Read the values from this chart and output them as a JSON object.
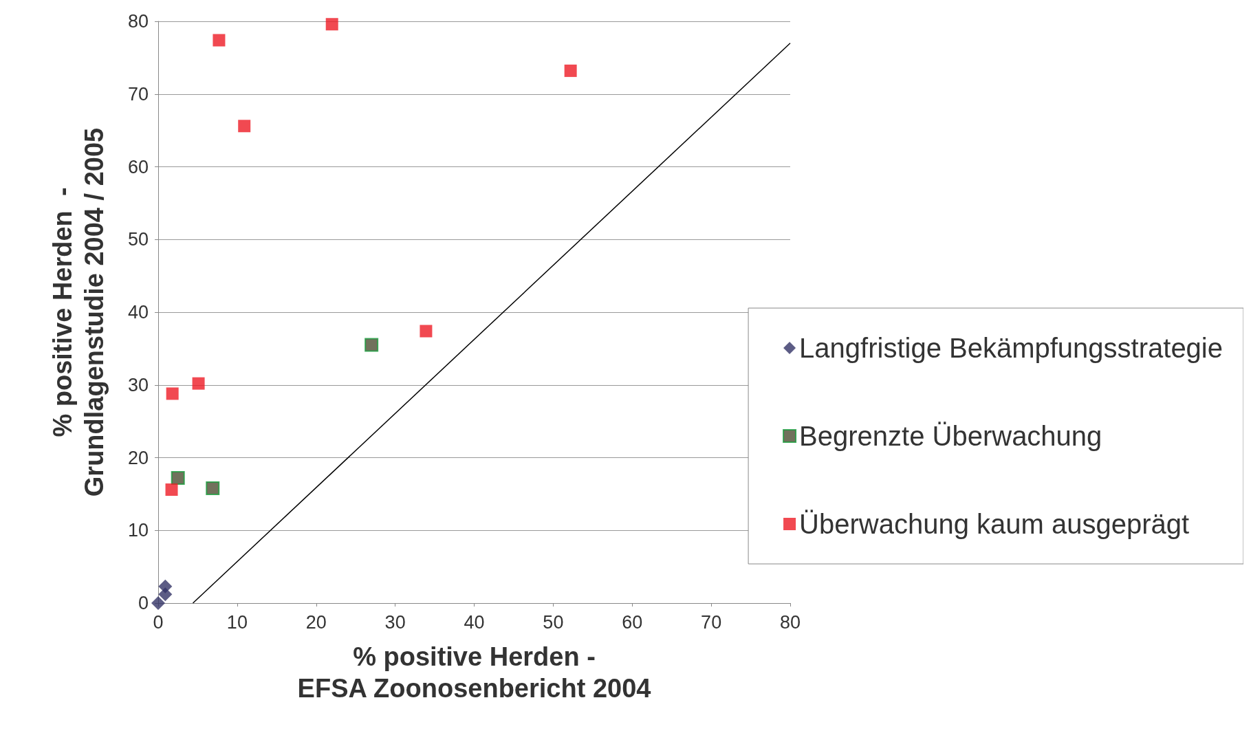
{
  "chart_data": {
    "type": "scatter",
    "xlabel": "% positive Herden -\nEFSA Zoonosenbericht 2004",
    "ylabel": "% positive Herden  -\nGrundlagenstudie 2004 / 2005",
    "xlim": [
      0,
      80
    ],
    "ylim": [
      0,
      80
    ],
    "xticks": [
      0,
      10,
      20,
      30,
      40,
      50,
      60,
      70,
      80
    ],
    "yticks": [
      0,
      10,
      20,
      30,
      40,
      50,
      60,
      70,
      80
    ],
    "grid": "y",
    "legend": "right",
    "series": [
      {
        "name": "Langfristige Bekämpfungsstrategie",
        "color": "#333366",
        "marker": "diamond",
        "x": [
          0.9,
          0.9,
          0.2,
          0
        ],
        "values": [
          2.3,
          1.2,
          null,
          0
        ]
      },
      {
        "name": "Begrenzte Überwachung",
        "color": "#4d4d33",
        "marker": "square",
        "x": [
          27.0,
          2.5,
          6.9
        ],
        "values": [
          35.5,
          17.2,
          15.8
        ]
      },
      {
        "name": "Überwachung kaum ausgeprägt",
        "color": "#ee1c25",
        "marker": "square",
        "x": [
          7.7,
          22.0,
          10.9,
          52.2,
          33.9,
          5.1,
          1.8,
          1.7
        ],
        "values": [
          77.4,
          79.6,
          65.6,
          73.2,
          37.4,
          30.2,
          28.8,
          15.6
        ]
      },
      {
        "type": "line",
        "color": "#000000",
        "marker": "none",
        "x": [
          4.4,
          80
        ],
        "values": [
          0,
          77
        ]
      }
    ]
  }
}
